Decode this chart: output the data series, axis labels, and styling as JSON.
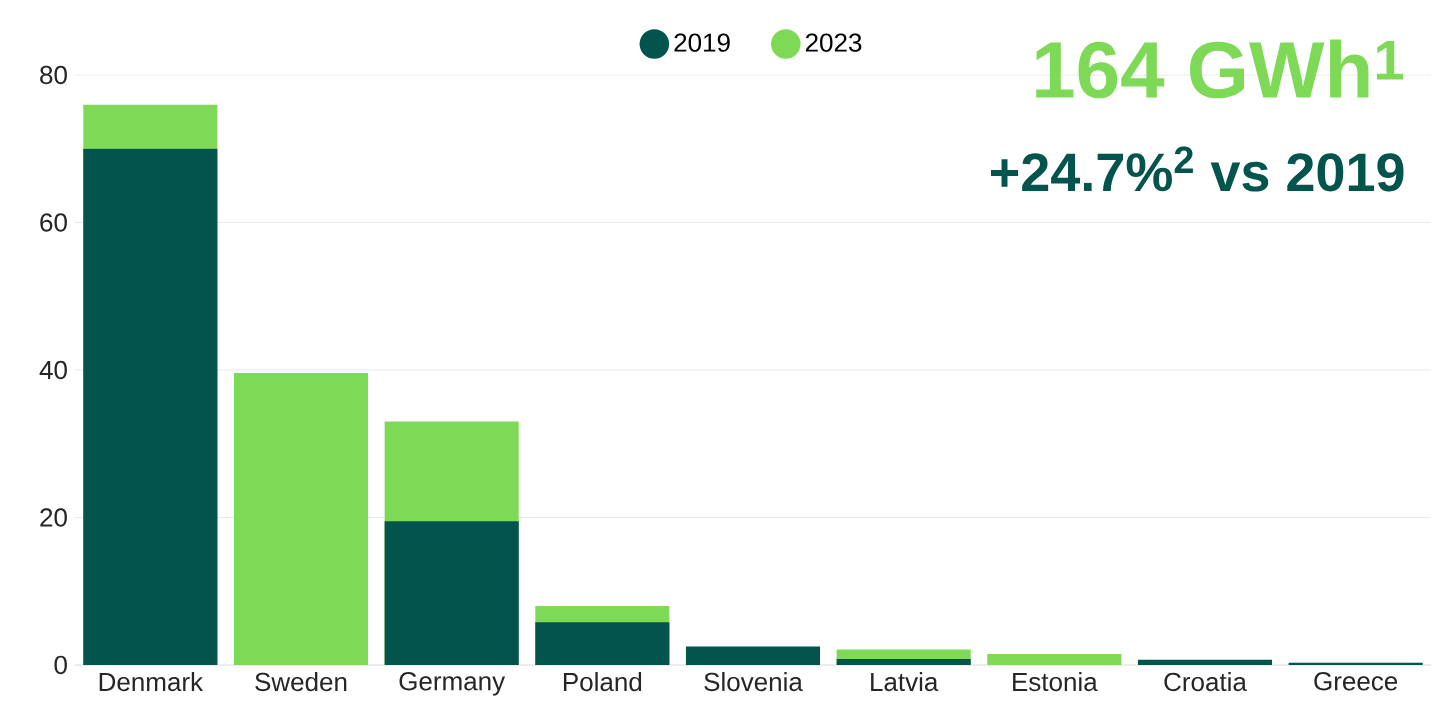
{
  "chart_data": {
    "type": "bar",
    "categories": [
      "Denmark",
      "Sweden",
      "Germany",
      "Poland",
      "Slovenia",
      "Latvia",
      "Estonia",
      "Croatia",
      "Greece"
    ],
    "series": [
      {
        "name": "2019",
        "color": "#02544c",
        "values": [
          70.0,
          null,
          19.5,
          5.8,
          2.5,
          0.8,
          null,
          0.7,
          0.3
        ]
      },
      {
        "name": "2023",
        "color": "#7ed957",
        "values": [
          76.0,
          39.6,
          33.0,
          8.0,
          null,
          2.1,
          1.5,
          null,
          null
        ]
      }
    ],
    "ylim": [
      0,
      80
    ],
    "yticks": [
      0,
      20,
      40,
      60,
      80
    ],
    "grid": "y",
    "legend": "top",
    "annotations": [
      "164 GWh$^{1}$",
      "+24.7%$^{2}$ vs 2019"
    ]
  }
}
